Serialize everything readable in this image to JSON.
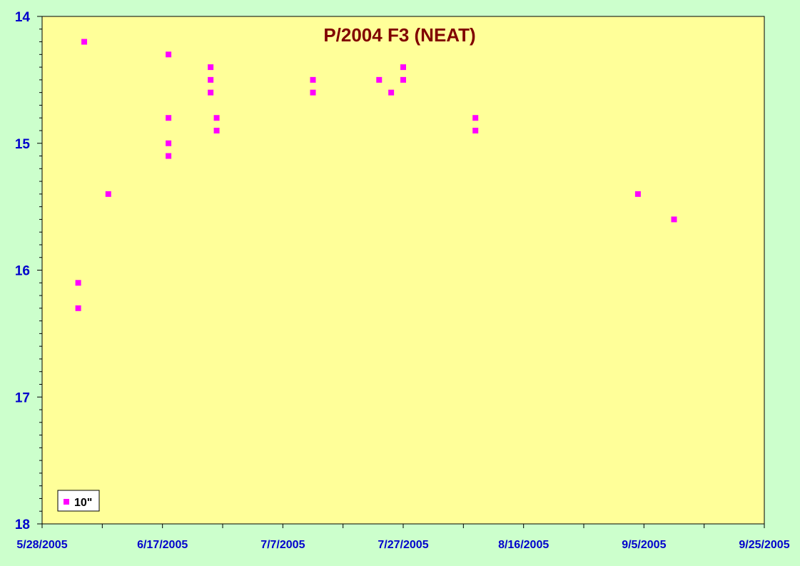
{
  "chart_data": {
    "type": "scatter",
    "title": "P/2004 F3 (NEAT)",
    "xlabel": "",
    "ylabel": "",
    "x_axis": {
      "type": "date",
      "min": "2005-05-28",
      "max": "2005-09-25",
      "tick_labels": [
        "5/28/2005",
        "6/17/2005",
        "7/7/2005",
        "7/27/2005",
        "8/16/2005",
        "9/5/2005",
        "9/25/2005"
      ]
    },
    "y_axis": {
      "min": 14,
      "max": 18,
      "inverted": true,
      "tick_labels": [
        "14",
        "15",
        "16",
        "17",
        "18"
      ]
    },
    "grid": false,
    "legend_placement": "bottom-left",
    "colors": {
      "plot_background": "#ffff99",
      "page_background": "#ccffcc",
      "marker": "#ff00ff",
      "axis_labels": "#0000cc",
      "title": "#800000"
    },
    "series": [
      {
        "name": "10\"",
        "marker": "square",
        "points": [
          {
            "x": "2005-06-03",
            "y": 16.1
          },
          {
            "x": "2005-06-03",
            "y": 16.3
          },
          {
            "x": "2005-06-04",
            "y": 14.2
          },
          {
            "x": "2005-06-08",
            "y": 15.4
          },
          {
            "x": "2005-06-18",
            "y": 14.3
          },
          {
            "x": "2005-06-18",
            "y": 14.8
          },
          {
            "x": "2005-06-18",
            "y": 15.0
          },
          {
            "x": "2005-06-18",
            "y": 15.1
          },
          {
            "x": "2005-06-25",
            "y": 14.4
          },
          {
            "x": "2005-06-25",
            "y": 14.5
          },
          {
            "x": "2005-06-25",
            "y": 14.6
          },
          {
            "x": "2005-06-26",
            "y": 14.8
          },
          {
            "x": "2005-06-26",
            "y": 14.9
          },
          {
            "x": "2005-07-12",
            "y": 14.5
          },
          {
            "x": "2005-07-12",
            "y": 14.6
          },
          {
            "x": "2005-07-23",
            "y": 14.5
          },
          {
            "x": "2005-07-25",
            "y": 14.6
          },
          {
            "x": "2005-07-27",
            "y": 14.4
          },
          {
            "x": "2005-07-27",
            "y": 14.5
          },
          {
            "x": "2005-08-08",
            "y": 14.8
          },
          {
            "x": "2005-08-08",
            "y": 14.9
          },
          {
            "x": "2005-09-04",
            "y": 15.4
          },
          {
            "x": "2005-09-10",
            "y": 15.6
          }
        ]
      }
    ]
  }
}
